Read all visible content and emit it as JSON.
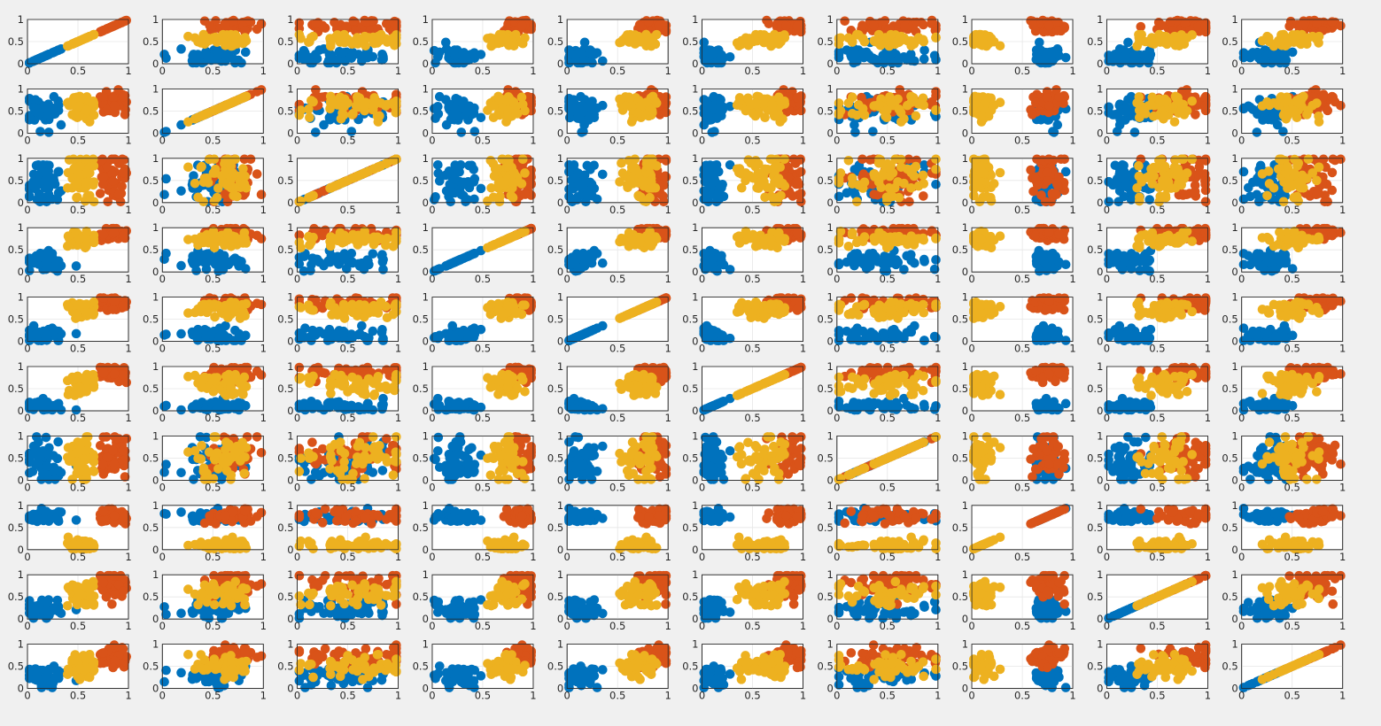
{
  "figure": {
    "rows": 10,
    "cols": 10,
    "background": "#f0f0f0",
    "series_colors": [
      "#0072bd",
      "#d95319",
      "#edb120"
    ]
  },
  "chart_data": {
    "type": "scatter",
    "title": "",
    "xlabel": "",
    "ylabel": "",
    "xlim": [
      0,
      1
    ],
    "ylim": [
      0,
      1
    ],
    "grid": true,
    "layout": "scatter-plot matrix, 10 x 10 subplots",
    "x_ticks": [
      "0",
      "0.5",
      "1"
    ],
    "y_ticks": [
      "0",
      "0.5",
      "1"
    ],
    "series": [
      {
        "color": "#0072bd",
        "points_per_subplot": 50
      },
      {
        "color": "#d95319",
        "points_per_subplot": 50
      },
      {
        "color": "#edb120",
        "points_per_subplot": 50
      }
    ],
    "diagonal_pattern": "points along y = x",
    "group_centers": [
      [
        0.15,
        0.85,
        0.55
      ],
      [
        0.5,
        0.7,
        0.6
      ],
      [
        0.45,
        0.6,
        0.55
      ],
      [
        0.25,
        0.85,
        0.75
      ],
      [
        0.15,
        0.85,
        0.7
      ],
      [
        0.1,
        0.85,
        0.6
      ],
      [
        0.45,
        0.55,
        0.5
      ],
      [
        0.75,
        0.75,
        0.1
      ],
      [
        0.25,
        0.8,
        0.55
      ],
      [
        0.25,
        0.7,
        0.5
      ]
    ],
    "group_spreads": [
      [
        0.12,
        0.08,
        0.08
      ],
      [
        0.18,
        0.16,
        0.16
      ],
      [
        0.28,
        0.28,
        0.28
      ],
      [
        0.1,
        0.08,
        0.08
      ],
      [
        0.1,
        0.07,
        0.1
      ],
      [
        0.07,
        0.09,
        0.1
      ],
      [
        0.28,
        0.28,
        0.28
      ],
      [
        0.06,
        0.08,
        0.06
      ],
      [
        0.12,
        0.12,
        0.12
      ],
      [
        0.14,
        0.14,
        0.14
      ]
    ]
  }
}
